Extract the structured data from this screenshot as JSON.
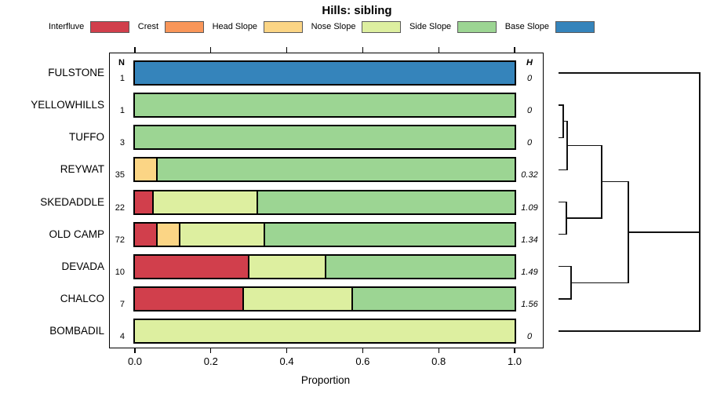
{
  "title": "Hills: sibling",
  "legend": {
    "items": [
      {
        "label": "Interfluve",
        "color": "#d13f4c"
      },
      {
        "label": "Crest",
        "color": "#f99659"
      },
      {
        "label": "Head Slope",
        "color": "#fbd585"
      },
      {
        "label": "Nose Slope",
        "color": "#ddefa0"
      },
      {
        "label": "Side Slope",
        "color": "#9cd593"
      },
      {
        "label": "Base Slope",
        "color": "#3584bb"
      }
    ]
  },
  "table": {
    "n_header": "N",
    "h_header": "H"
  },
  "x_axis": {
    "label": "Proportion",
    "tick_values": [
      0.0,
      0.2,
      0.4,
      0.6,
      0.8,
      1.0
    ],
    "tick_labels": [
      "0.0",
      "0.2",
      "0.4",
      "0.6",
      "0.8",
      "1.0"
    ]
  },
  "chart_data": {
    "type": "bar",
    "variant": "stacked-horizontal-proportion",
    "title": "Hills: sibling",
    "xlabel": "Proportion",
    "xlim": [
      0,
      1
    ],
    "grid": false,
    "legend_position": "top",
    "categories": [
      "Interfluve",
      "Crest",
      "Head Slope",
      "Nose Slope",
      "Side Slope",
      "Base Slope"
    ],
    "rows": [
      {
        "label": "FULSTONE",
        "n": 1,
        "h": "0",
        "segments": [
          {
            "category": "Base Slope",
            "value": 1.0
          }
        ]
      },
      {
        "label": "YELLOWHILLS",
        "n": 1,
        "h": "0",
        "segments": [
          {
            "category": "Side Slope",
            "value": 1.0
          }
        ]
      },
      {
        "label": "TUFFO",
        "n": 3,
        "h": "0",
        "segments": [
          {
            "category": "Side Slope",
            "value": 1.0
          }
        ]
      },
      {
        "label": "REYWAT",
        "n": 35,
        "h": "0.32",
        "segments": [
          {
            "category": "Head Slope",
            "value": 0.057
          },
          {
            "category": "Side Slope",
            "value": 0.943
          }
        ]
      },
      {
        "label": "SKEDADDLE",
        "n": 22,
        "h": "1.09",
        "segments": [
          {
            "category": "Interfluve",
            "value": 0.045
          },
          {
            "category": "Nose Slope",
            "value": 0.273
          },
          {
            "category": "Side Slope",
            "value": 0.682
          }
        ]
      },
      {
        "label": "OLD CAMP",
        "n": 72,
        "h": "1.34",
        "segments": [
          {
            "category": "Interfluve",
            "value": 0.056
          },
          {
            "category": "Head Slope",
            "value": 0.056
          },
          {
            "category": "Nose Slope",
            "value": 0.222
          },
          {
            "category": "Side Slope",
            "value": 0.666
          }
        ]
      },
      {
        "label": "DEVADA",
        "n": 10,
        "h": "1.49",
        "segments": [
          {
            "category": "Interfluve",
            "value": 0.3
          },
          {
            "category": "Nose Slope",
            "value": 0.2
          },
          {
            "category": "Side Slope",
            "value": 0.5
          }
        ]
      },
      {
        "label": "CHALCO",
        "n": 7,
        "h": "1.56",
        "segments": [
          {
            "category": "Interfluve",
            "value": 0.286
          },
          {
            "category": "Nose Slope",
            "value": 0.285
          },
          {
            "category": "Side Slope",
            "value": 0.429
          }
        ]
      },
      {
        "label": "BOMBADIL",
        "n": 4,
        "h": "0",
        "segments": [
          {
            "category": "Nose Slope",
            "value": 1.0
          }
        ]
      }
    ],
    "dendrogram": {
      "position": "right",
      "tree": {
        "height": 1.0,
        "children": [
          {
            "leaf": "FULSTONE"
          },
          {
            "height": 0.494,
            "children": [
              {
                "height": 0.306,
                "children": [
                  {
                    "height": 0.061,
                    "children": [
                      {
                        "height": 0.033,
                        "children": [
                          {
                            "leaf": "YELLOWHILLS"
                          },
                          {
                            "leaf": "TUFFO"
                          }
                        ]
                      },
                      {
                        "leaf": "REYWAT"
                      }
                    ]
                  },
                  {
                    "height": 0.056,
                    "children": [
                      {
                        "leaf": "SKEDADDLE"
                      },
                      {
                        "leaf": "OLD CAMP"
                      }
                    ]
                  }
                ]
              },
              {
                "height": 0.089,
                "children": [
                  {
                    "leaf": "DEVADA"
                  },
                  {
                    "leaf": "CHALCO"
                  }
                ]
              }
            ]
          },
          {
            "leaf": "BOMBADIL"
          }
        ]
      }
    }
  }
}
